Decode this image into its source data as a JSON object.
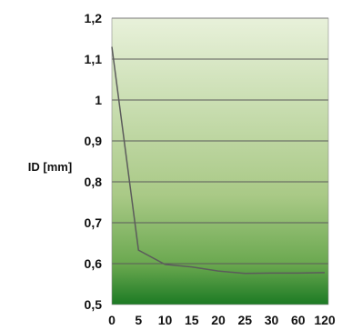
{
  "chart_data": {
    "type": "line",
    "title": "",
    "xlabel": "",
    "ylabel": "ID [mm]",
    "categories": [
      "0",
      "5",
      "10",
      "15",
      "20",
      "25",
      "30",
      "60",
      "120"
    ],
    "series": [
      {
        "values": [
          1.13,
          0.633,
          0.598,
          0.592,
          0.582,
          0.576,
          0.577,
          0.577,
          0.578
        ]
      }
    ],
    "y_ticks": [
      "0,5",
      "0,6",
      "0,7",
      "0,8",
      "0,9",
      "1",
      "1,1",
      "1,2"
    ],
    "ylim": [
      0.5,
      1.2
    ],
    "grid": true,
    "legend": "none",
    "colors": {
      "background_top": "#e8f1da",
      "background_mid": "#a9c986",
      "background_bottom": "#1c7a24",
      "line": "#5b5b5b",
      "grid": "#5a5a5a"
    }
  }
}
